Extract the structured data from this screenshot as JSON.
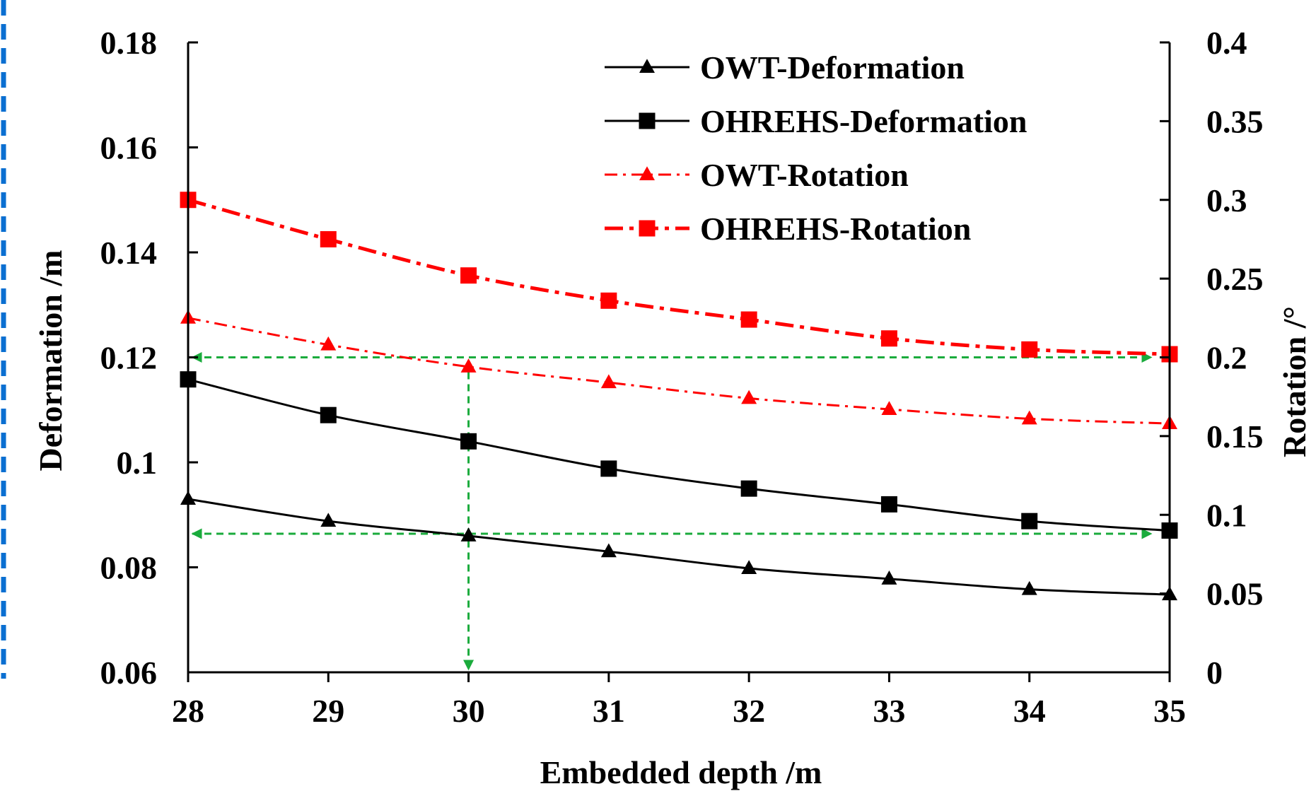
{
  "chart_data": {
    "type": "line",
    "xlabel": "Embedded depth /m",
    "ylabel_left": "Deformation /m",
    "ylabel_right": "Rotation /°",
    "x": [
      28,
      29,
      30,
      31,
      32,
      33,
      34,
      35
    ],
    "x_ticks": [
      "28",
      "29",
      "30",
      "31",
      "32",
      "33",
      "34",
      "35"
    ],
    "xlim": [
      28,
      35
    ],
    "ylim_left": [
      0.06,
      0.18
    ],
    "ylim_right": [
      0,
      0.4
    ],
    "y_ticks_left": [
      "0.06",
      "0.08",
      "0.1",
      "0.12",
      "0.14",
      "0.16",
      "0.18"
    ],
    "y_ticks_right": [
      "0",
      "0.05",
      "0.1",
      "0.15",
      "0.2",
      "0.25",
      "0.3",
      "0.35",
      "0.4"
    ],
    "grid": false,
    "legend_position": "top-right",
    "series": [
      {
        "name": "OWT-Deformation",
        "axis": "left",
        "marker": "triangle",
        "color": "#000000",
        "dash": "solid",
        "values": [
          0.093,
          0.0888,
          0.086,
          0.083,
          0.0798,
          0.0778,
          0.0758,
          0.0748
        ]
      },
      {
        "name": "OHREHS-Deformation",
        "axis": "left",
        "marker": "square",
        "color": "#000000",
        "dash": "solid",
        "values": [
          0.1158,
          0.109,
          0.104,
          0.0988,
          0.095,
          0.092,
          0.0888,
          0.087
        ]
      },
      {
        "name": "OWT-Rotation",
        "axis": "right",
        "marker": "triangle",
        "color": "#ff0000",
        "dash": "dashdot-thin",
        "values": [
          0.225,
          0.208,
          0.194,
          0.184,
          0.174,
          0.167,
          0.161,
          0.158
        ]
      },
      {
        "name": "OHREHS-Rotation",
        "axis": "right",
        "marker": "square",
        "color": "#ff0000",
        "dash": "dashdot-thick",
        "values": [
          0.3,
          0.275,
          0.252,
          0.236,
          0.224,
          0.212,
          0.205,
          0.202
        ]
      }
    ],
    "annotations": {
      "color": "#1aab3c",
      "horizontal_arrows": [
        {
          "axis": "right",
          "y": 0.2,
          "x_from": 28,
          "x_to": 35
        },
        {
          "axis": "right",
          "y": 0.088,
          "x_from": 28,
          "x_to": 35
        }
      ],
      "vertical_arrows": [
        {
          "x": 30,
          "y_from": 0.2,
          "y_to": 0
        }
      ]
    }
  },
  "colors": {
    "frame_border": "#0a6fd1",
    "axis": "#000000"
  }
}
